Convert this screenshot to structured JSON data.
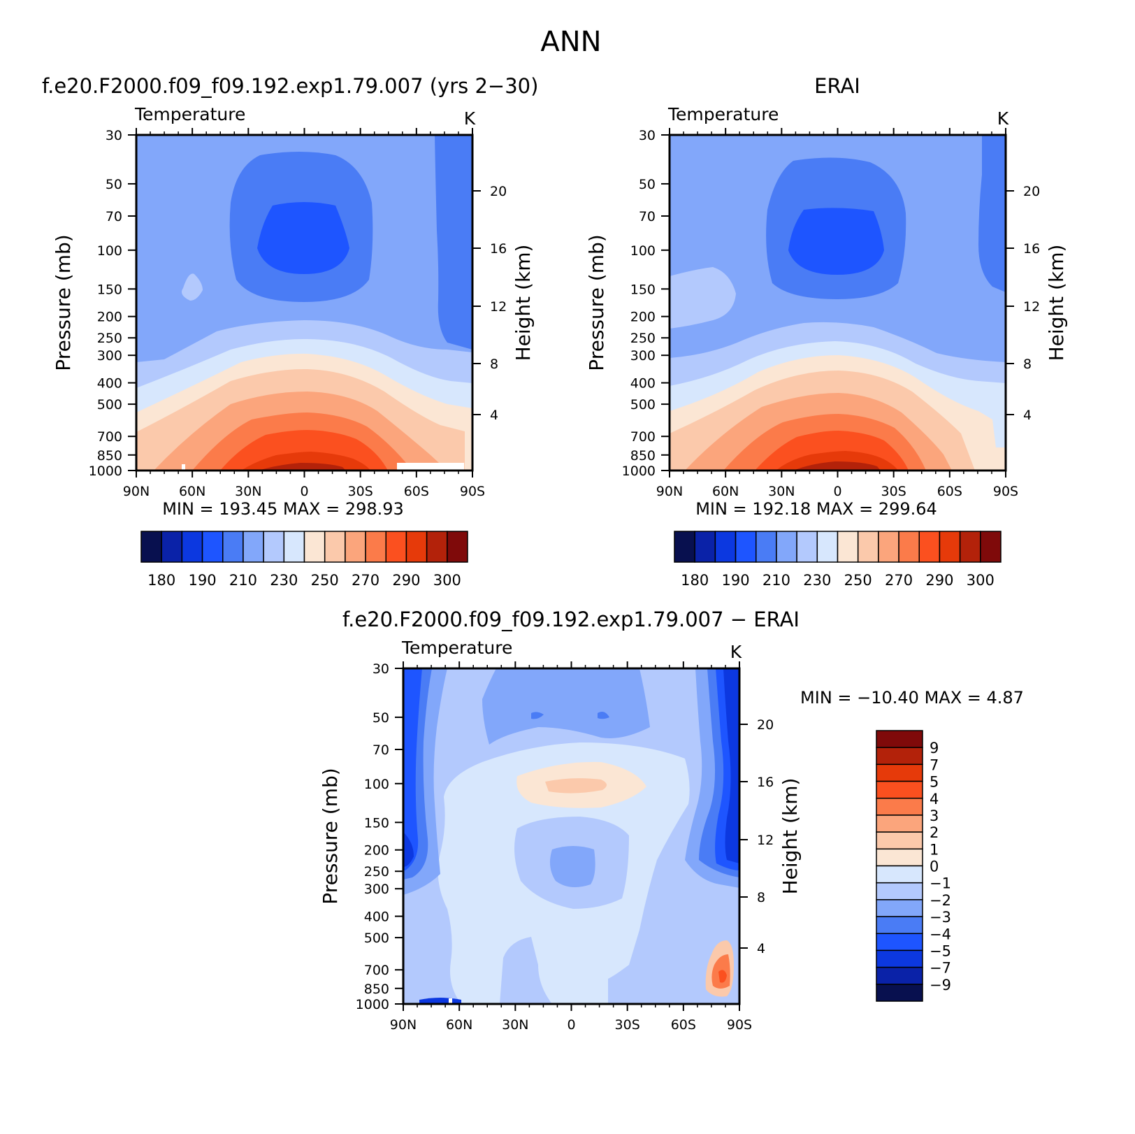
{
  "page": {
    "title": "ANN",
    "panels": {
      "model": {
        "title": "f.e20.F2000.f09_f09.192.exp1.79.007 (yrs 2−30)",
        "variable": "Temperature",
        "units": "K",
        "min_max": "MIN = 193.45   MAX = 298.93"
      },
      "obs": {
        "title": "ERAI",
        "variable": "Temperature",
        "units": "K",
        "min_max": "MIN = 192.18   MAX = 299.64"
      },
      "diff": {
        "title": "f.e20.F2000.f09_f09.192.exp1.79.007 − ERAI",
        "variable": "Temperature",
        "units": "K",
        "min_max": "MIN = −10.40   MAX =    4.87"
      }
    },
    "axes": {
      "ylabel": "Pressure (mb)",
      "ylabel_right": "Height (km)",
      "x_ticks": [
        "90N",
        "60N",
        "30N",
        "0",
        "30S",
        "60S",
        "90S"
      ],
      "y_ticks": [
        "30",
        "50",
        "70",
        "100",
        "150",
        "200",
        "250",
        "300",
        "400",
        "500",
        "700",
        "850",
        "1000"
      ],
      "height_ticks": [
        "20",
        "16",
        "12",
        "8",
        "4"
      ]
    },
    "abs_colorbar": {
      "labels": [
        "180",
        "190",
        "210",
        "230",
        "250",
        "270",
        "290",
        "300"
      ],
      "colors": [
        "#08104f",
        "#0a22a8",
        "#0c38e0",
        "#1e55ff",
        "#4a7cf5",
        "#82a7fa",
        "#b3c9fd",
        "#d7e7fd",
        "#fbe6d4",
        "#fbc9ab",
        "#fba57c",
        "#fb7b4a",
        "#fb501f",
        "#e63a0a",
        "#b3220a",
        "#7f0a0a"
      ]
    },
    "diff_colorbar": {
      "labels": [
        "9",
        "7",
        "5",
        "4",
        "3",
        "2",
        "1",
        "0",
        "−1",
        "−2",
        "−3",
        "−4",
        "−5",
        "−7",
        "−9"
      ],
      "colors": [
        "#7f0a0a",
        "#b3220a",
        "#e63a0a",
        "#fb501f",
        "#fb7b4a",
        "#fba57c",
        "#fbc9ab",
        "#fbe6d4",
        "#d7e7fd",
        "#b3c9fd",
        "#82a7fa",
        "#4a7cf5",
        "#1e55ff",
        "#0c38e0",
        "#0a22a8",
        "#08104f"
      ]
    }
  },
  "chart_data": [
    {
      "type": "heatmap",
      "title": "f.e20.F2000.f09_f09.192.exp1.79.007 (yrs 2−30)",
      "subtitle": "Temperature",
      "units": "K",
      "x": [
        "90N",
        "60N",
        "30N",
        "0",
        "30S",
        "60S",
        "90S"
      ],
      "y": [
        30,
        50,
        70,
        100,
        150,
        200,
        250,
        300,
        400,
        500,
        700,
        850,
        1000
      ],
      "y_scale": "log",
      "min": 193.45,
      "max": 298.93,
      "approx_values": [
        [
          215,
          210,
          205,
          203,
          205,
          210,
          205
        ],
        [
          215,
          210,
          200,
          197,
          200,
          210,
          205
        ],
        [
          215,
          215,
          205,
          200,
          205,
          212,
          208
        ],
        [
          220,
          228,
          240,
          245,
          240,
          230,
          222
        ],
        [
          238,
          248,
          258,
          262,
          258,
          248,
          240
        ],
        [
          255,
          268,
          280,
          285,
          280,
          268,
          258
        ],
        [
          262,
          278,
          292,
          296,
          290,
          275,
          265
        ]
      ]
    },
    {
      "type": "heatmap",
      "title": "ERAI",
      "subtitle": "Temperature",
      "units": "K",
      "x": [
        "90N",
        "60N",
        "30N",
        "0",
        "30S",
        "60S",
        "90S"
      ],
      "y": [
        30,
        50,
        70,
        100,
        150,
        200,
        250,
        300,
        400,
        500,
        700,
        850,
        1000
      ],
      "y_scale": "log",
      "min": 192.18,
      "max": 299.64
    },
    {
      "type": "heatmap",
      "title": "f.e20.F2000.f09_f09.192.exp1.79.007 − ERAI",
      "subtitle": "Temperature",
      "units": "K",
      "x": [
        "90N",
        "60N",
        "30N",
        "0",
        "30S",
        "60S",
        "90S"
      ],
      "y": [
        30,
        50,
        70,
        100,
        150,
        200,
        250,
        300,
        400,
        500,
        700,
        850,
        1000
      ],
      "y_scale": "log",
      "min": -10.4,
      "max": 4.87
    }
  ]
}
